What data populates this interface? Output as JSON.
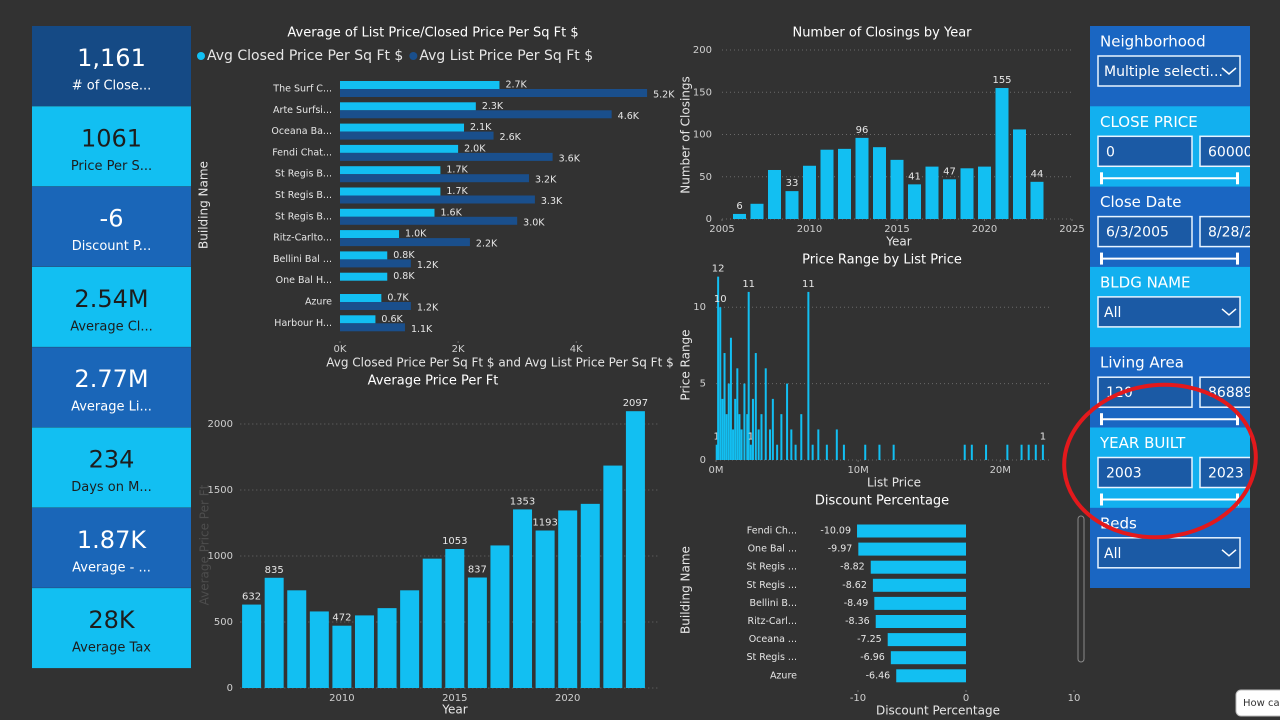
{
  "kpis": [
    {
      "value": "1,161",
      "label": "# of Close...",
      "color": "#154a85"
    },
    {
      "value": "1061",
      "label": "Price Per S...",
      "color": "#12bff2"
    },
    {
      "value": "-6",
      "label": "Discount P...",
      "color": "#1a66b8"
    },
    {
      "value": "2.54M",
      "label": "Average Cl...",
      "color": "#12bff2"
    },
    {
      "value": "2.77M",
      "label": "Average Li...",
      "color": "#1a66b8"
    },
    {
      "value": "234",
      "label": "Days on M...",
      "color": "#12bff2"
    },
    {
      "value": "1.87K",
      "label": "Average - ...",
      "color": "#1a66b8"
    },
    {
      "value": "28K",
      "label": "Average Tax",
      "color": "#12bff2"
    }
  ],
  "chart_data": [
    {
      "type": "bar",
      "orientation": "horizontal",
      "title": "Average of List Price/Closed Price Per Sq Ft $",
      "x_label": "Avg Closed Price Per Sq Ft $ and Avg List Price Per Sq Ft $",
      "y_label": "Building Name",
      "legend": "top-left",
      "categories": [
        "The Surf C...",
        "Arte Surfsi...",
        "Oceana Ba...",
        "Fendi Chat...",
        "St Regis B...",
        "St Regis B...",
        "St Regis B...",
        "Ritz-Carlto...",
        "Bellini Bal ...",
        "One Bal H...",
        "Azure",
        "Harbour H..."
      ],
      "series": [
        {
          "name": "Avg Closed Price Per Sq Ft $",
          "color": "#12bff2",
          "values": [
            2700,
            2300,
            2100,
            2000,
            1700,
            1700,
            1600,
            1000,
            800,
            800,
            700,
            600
          ],
          "value_labels": [
            "2.7K",
            "2.3K",
            "2.1K",
            "2.0K",
            "1.7K",
            "1.7K",
            "1.6K",
            "1.0K",
            "0.8K",
            "0.8K",
            "0.7K",
            "0.6K"
          ]
        },
        {
          "name": "Avg List Price Per Sq Ft $",
          "color": "#1a4f8c",
          "values": [
            5200,
            4600,
            2600,
            3600,
            3200,
            3300,
            3000,
            2200,
            1200,
            null,
            1200,
            1100
          ],
          "value_labels": [
            "5.2K",
            "4.6K",
            "2.6K",
            "3.6K",
            "3.2K",
            "3.3K",
            "3.0K",
            "2.2K",
            "1.2K",
            null,
            "1.2K",
            "1.1K"
          ]
        }
      ],
      "xlim": [
        0,
        5300
      ],
      "xticks": [
        {
          "value": 0,
          "label": "0K"
        },
        {
          "value": 2000,
          "label": "2K"
        },
        {
          "value": 4000,
          "label": "4K"
        }
      ],
      "grid": false
    },
    {
      "type": "bar",
      "title": "Number of Closings by Year",
      "x_label": "Year",
      "y_label": "Number of Closings",
      "color": "#12bff2",
      "x": [
        2006,
        2007,
        2008,
        2009,
        2010,
        2011,
        2012,
        2013,
        2014,
        2015,
        2016,
        2017,
        2018,
        2019,
        2020,
        2021,
        2022,
        2023
      ],
      "values": [
        6,
        18,
        58,
        33,
        63,
        82,
        83,
        96,
        85,
        70,
        41,
        62,
        47,
        60,
        62,
        155,
        106,
        44
      ],
      "value_labels": [
        "6",
        null,
        null,
        "33",
        null,
        null,
        null,
        "96",
        null,
        null,
        "41",
        null,
        "47",
        null,
        null,
        "155",
        null,
        "44"
      ],
      "xlim": [
        2005,
        2025
      ],
      "xticks": [
        2005,
        2010,
        2015,
        2020,
        2025
      ],
      "ylim": [
        0,
        200
      ],
      "yticks": [
        0,
        50,
        100,
        150,
        200
      ],
      "grid": true
    },
    {
      "type": "bar",
      "title": "Price Range by List Price",
      "x_label": "List Price",
      "y_label": "Price Range",
      "color": "#12bff2",
      "x": [
        50000,
        150000,
        300000,
        450000,
        600000,
        750000,
        900000,
        1050000,
        1200000,
        1350000,
        1500000,
        1650000,
        1800000,
        2000000,
        2200000,
        2300000,
        2450000,
        2600000,
        2800000,
        3000000,
        3200000,
        3500000,
        3800000,
        4000000,
        4300000,
        4600000,
        5000000,
        5300000,
        5600000,
        6000000,
        6500000,
        6800000,
        7200000,
        7800000,
        8500000,
        9000000,
        10500000,
        11500000,
        12500000,
        17500000,
        18000000,
        19000000,
        20500000,
        21500000,
        22000000,
        22500000,
        23000000
      ],
      "values": [
        1,
        12,
        10,
        4,
        7,
        3,
        5,
        8,
        2,
        4,
        6,
        3,
        2,
        5,
        3,
        11,
        1,
        4,
        7,
        2,
        3,
        6,
        2,
        4,
        1,
        3,
        5,
        2,
        1,
        3,
        11,
        1,
        2,
        1,
        2,
        1,
        1,
        1,
        1,
        1,
        1,
        1,
        1,
        1,
        1,
        1,
        1
      ],
      "value_labels": [
        "1",
        "12",
        "10",
        null,
        null,
        null,
        null,
        null,
        null,
        null,
        null,
        null,
        null,
        null,
        null,
        "11",
        "1",
        null,
        null,
        null,
        null,
        null,
        null,
        null,
        null,
        null,
        null,
        null,
        null,
        null,
        "11",
        null,
        null,
        null,
        null,
        null,
        null,
        null,
        null,
        null,
        null,
        null,
        null,
        null,
        null,
        null,
        "1"
      ],
      "xlim": [
        0,
        23500000
      ],
      "xticks": [
        {
          "value": 0,
          "label": "0M"
        },
        {
          "value": 10000000,
          "label": "10M"
        },
        {
          "value": 20000000,
          "label": "20M"
        }
      ],
      "ylim": [
        0,
        12.5
      ],
      "yticks": [
        0,
        5,
        10
      ],
      "grid": true
    },
    {
      "type": "bar",
      "title": "Average Price Per Ft",
      "x_label": "Year",
      "y_label": "Average Price Per Ft",
      "color": "#12bff2",
      "x": [
        2006,
        2007,
        2008,
        2009,
        2010,
        2011,
        2012,
        2013,
        2014,
        2015,
        2016,
        2017,
        2018,
        2019,
        2020,
        2021,
        2022,
        2023
      ],
      "values": [
        632,
        835,
        740,
        580,
        472,
        550,
        605,
        740,
        980,
        1053,
        837,
        1080,
        1353,
        1193,
        1345,
        1395,
        1685,
        2097
      ],
      "value_labels": [
        "632",
        "835",
        null,
        null,
        "472",
        null,
        null,
        null,
        null,
        "1053",
        "837",
        null,
        "1353",
        "1193",
        null,
        null,
        null,
        "2097"
      ],
      "xlim": [
        2005.5,
        2024
      ],
      "xticks": [
        2010,
        2015,
        2020
      ],
      "ylim": [
        0,
        2200
      ],
      "yticks": [
        0,
        500,
        1000,
        1500,
        2000
      ],
      "grid": true
    },
    {
      "type": "bar",
      "orientation": "horizontal",
      "title": "Discount Percentage",
      "x_label": "Discount Percentage",
      "y_label": "Building Name",
      "color": "#12bff2",
      "categories": [
        "Fendi Ch...",
        "One Bal ...",
        "St Regis ...",
        "St Regis ...",
        "Bellini B...",
        "Ritz-Carl...",
        "Oceana ...",
        "St Regis ...",
        "Azure"
      ],
      "values": [
        -10.09,
        -9.97,
        -8.82,
        -8.62,
        -8.49,
        -8.36,
        -7.25,
        -6.96,
        -6.46
      ],
      "xlim": [
        -10.5,
        10
      ],
      "xticks": [
        -10,
        0,
        10
      ],
      "grid": false
    }
  ],
  "slicers": [
    {
      "title": "Neighborhood",
      "values": [
        "Multiple selecti..."
      ],
      "color": "#1a66c2"
    },
    {
      "title": "CLOSE PRICE",
      "values": [
        "0",
        "60000"
      ],
      "color": "#12b0ef"
    },
    {
      "title": "Close Date",
      "values": [
        "6/3/2005",
        "8/28/2"
      ],
      "color": "#1a66c2"
    },
    {
      "title": "BLDG NAME",
      "values": [
        "All"
      ],
      "color": "#12b0ef"
    },
    {
      "title": "Living Area",
      "values": [
        "120",
        "86889"
      ],
      "color": "#1a66c2"
    },
    {
      "title": "YEAR BUILT",
      "values": [
        "2003",
        "2023"
      ],
      "color": "#12b0ef"
    },
    {
      "title": "Beds",
      "values": [
        "All"
      ],
      "color": "#1a66c2"
    }
  ],
  "help_button": "How car"
}
